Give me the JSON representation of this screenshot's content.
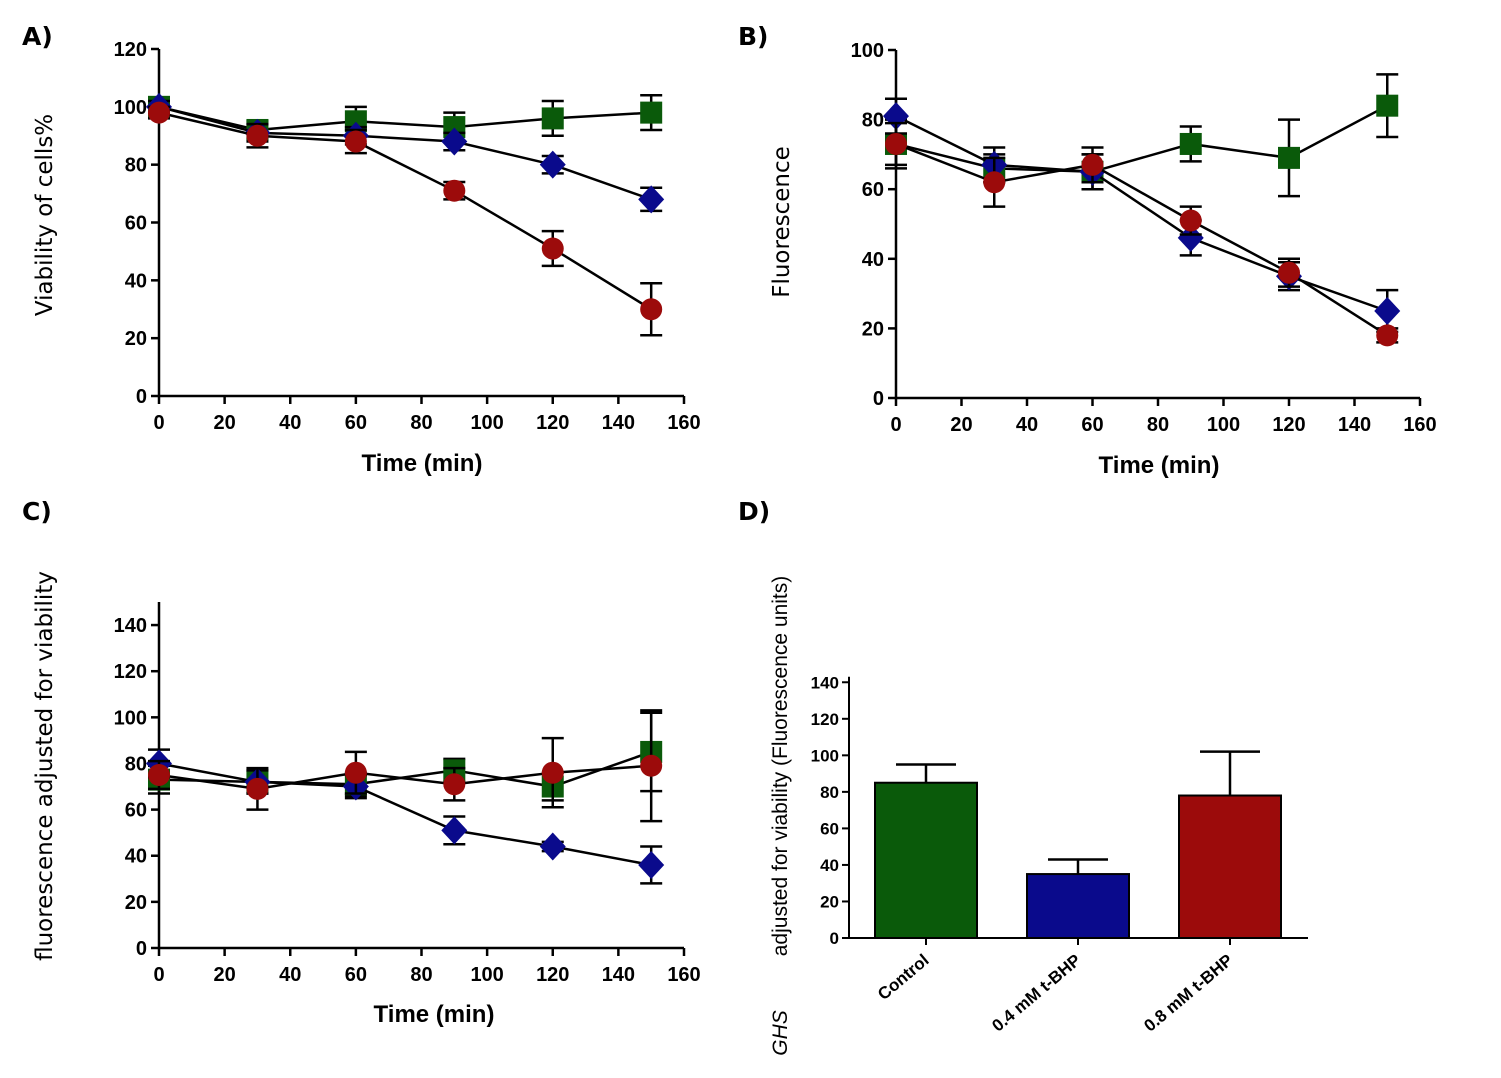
{
  "colors": {
    "control": "#0a5a0a",
    "low": "#0a0a8c",
    "high": "#9c0b0b",
    "axis": "#000000"
  },
  "chart_data": [
    {
      "panel_label": "A)",
      "type": "line",
      "xlabel": "Time (min)",
      "ylabel": "Viability of cells%",
      "xlim": [
        0,
        160
      ],
      "ylim": [
        0,
        120
      ],
      "xticks": [
        0,
        20,
        40,
        60,
        80,
        100,
        120,
        140,
        160
      ],
      "yticks": [
        0,
        20,
        40,
        60,
        80,
        100,
        120
      ],
      "x": [
        0,
        30,
        60,
        90,
        120,
        150
      ],
      "series": [
        {
          "key": "control",
          "marker": "square",
          "values": [
            100,
            92,
            95,
            93,
            96,
            98
          ],
          "errors": [
            2,
            3,
            5,
            5,
            6,
            6
          ]
        },
        {
          "key": "low",
          "marker": "diamond",
          "values": [
            100,
            91,
            90,
            88,
            80,
            68
          ],
          "errors": [
            2,
            3,
            3,
            3,
            3,
            4
          ]
        },
        {
          "key": "high",
          "marker": "circle",
          "values": [
            98,
            90,
            88,
            71,
            51,
            30
          ],
          "errors": [
            2,
            4,
            4,
            3,
            6,
            9
          ]
        }
      ]
    },
    {
      "panel_label": "B)",
      "type": "line",
      "xlabel": "Time (min)",
      "ylabel": "Fluorescence",
      "xlim": [
        0,
        160
      ],
      "ylim": [
        0,
        100
      ],
      "xticks": [
        0,
        20,
        40,
        60,
        80,
        100,
        120,
        140,
        160
      ],
      "yticks": [
        0,
        20,
        40,
        60,
        80,
        100
      ],
      "x": [
        0,
        30,
        60,
        90,
        120,
        150
      ],
      "series": [
        {
          "key": "control",
          "marker": "square",
          "values": [
            73,
            66,
            65,
            73,
            69,
            84
          ],
          "errors": [
            7,
            4,
            5,
            5,
            11,
            9
          ]
        },
        {
          "key": "low",
          "marker": "diamond",
          "values": [
            81,
            67,
            65,
            46,
            35,
            25
          ],
          "errors": [
            5,
            5,
            5,
            5,
            4,
            6
          ]
        },
        {
          "key": "high",
          "marker": "circle",
          "values": [
            73,
            62,
            67,
            51,
            36,
            18
          ],
          "errors": [
            6,
            7,
            5,
            4,
            4,
            2
          ]
        }
      ]
    },
    {
      "panel_label": "C)",
      "type": "line",
      "xlabel": "Time (min)",
      "ylabel": "fluorescence adjusted for viability",
      "xlim": [
        0,
        160
      ],
      "ylim": [
        0,
        150
      ],
      "xticks": [
        0,
        20,
        40,
        60,
        80,
        100,
        120,
        140,
        160
      ],
      "yticks": [
        0,
        20,
        40,
        60,
        80,
        100,
        120,
        140
      ],
      "x": [
        0,
        30,
        60,
        90,
        120,
        150
      ],
      "series": [
        {
          "key": "control",
          "marker": "square",
          "values": [
            73,
            72,
            71,
            77,
            70,
            85
          ],
          "errors": [
            6,
            5,
            5,
            5,
            6,
            17
          ]
        },
        {
          "key": "low",
          "marker": "diamond",
          "values": [
            80,
            72,
            70,
            51,
            44,
            36
          ],
          "errors": [
            6,
            5,
            5,
            6,
            2,
            8
          ]
        },
        {
          "key": "high",
          "marker": "circle",
          "values": [
            75,
            69,
            76,
            71,
            76,
            79
          ],
          "errors": [
            6,
            9,
            9,
            7,
            15,
            24
          ]
        }
      ]
    },
    {
      "panel_label": "D)",
      "type": "bar",
      "ylabel": "GHS adjusted for viability (Fluorescence units)",
      "ylabel_prefix": "GHS",
      "ylabel_main": "adjusted for viability (Fluorescence units)",
      "ylim": [
        0,
        150
      ],
      "yticks": [
        0,
        20,
        40,
        60,
        80,
        100,
        120,
        140
      ],
      "categories": [
        "Control",
        "0.4 mM t-BHP",
        "0.8 mM t-BHP"
      ],
      "category_keys": [
        "control",
        "low",
        "high"
      ],
      "values": [
        85,
        35,
        78
      ],
      "errors": [
        10,
        8,
        24
      ]
    }
  ]
}
